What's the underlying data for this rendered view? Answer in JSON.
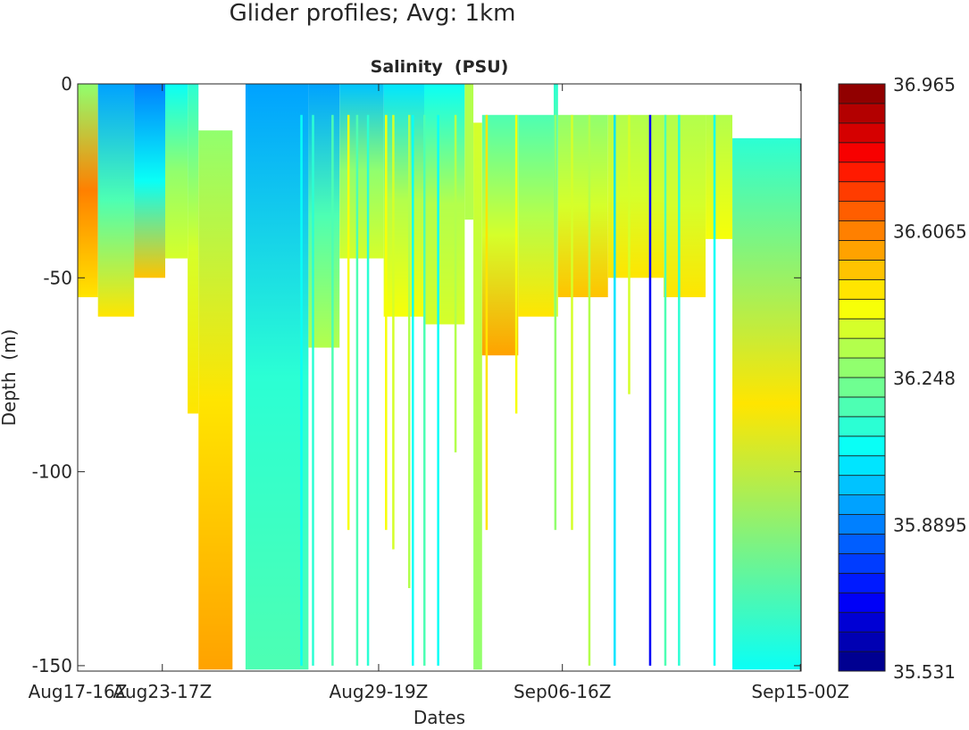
{
  "chart_data": {
    "type": "heatmap",
    "suptitle": "Glider profiles; Avg: 1km",
    "title": "Salinity  (PSU)",
    "xlabel": "Dates",
    "ylabel": "Depth  (m)",
    "xlim": [
      0,
      100
    ],
    "ylim": [
      -151.4,
      0
    ],
    "xticks": [
      {
        "value": 0,
        "label": "Aug17-16Z"
      },
      {
        "value": 11.7,
        "label": "Aug23-17Z"
      },
      {
        "value": 41.6,
        "label": "Aug29-19Z"
      },
      {
        "value": 67.0,
        "label": "Sep06-16Z"
      },
      {
        "value": 99.9,
        "label": "Sep15-00Z"
      }
    ],
    "yticks": [
      {
        "value": 0,
        "label": "0"
      },
      {
        "value": -50,
        "label": "-50"
      },
      {
        "value": -100,
        "label": "-100"
      },
      {
        "value": -150,
        "label": "-150"
      }
    ],
    "colorbar": {
      "min": 35.531,
      "max": 36.965,
      "levels": 30,
      "colormap": "jet",
      "ticks": [
        {
          "value": 36.965,
          "label": "36.965"
        },
        {
          "value": 36.6065,
          "label": "36.6065"
        },
        {
          "value": 36.248,
          "label": "36.248"
        },
        {
          "value": 35.8895,
          "label": "35.8895"
        },
        {
          "value": 35.531,
          "label": "35.531"
        }
      ]
    },
    "segments": [
      {
        "x0": 0,
        "x1": 2.8,
        "top": 0,
        "bottom": -55,
        "s": [
          36.25,
          36.6,
          36.45
        ]
      },
      {
        "x0": 2.8,
        "x1": 7.8,
        "top": 0,
        "bottom": -60,
        "s": [
          35.95,
          36.2,
          36.45
        ]
      },
      {
        "x0": 7.8,
        "x1": 12.1,
        "top": 0,
        "bottom": -50,
        "s": [
          35.9,
          36.1,
          36.5
        ]
      },
      {
        "x0": 12.1,
        "x1": 15.2,
        "top": 0,
        "bottom": -45,
        "s": [
          36.1,
          36.25,
          36.35
        ]
      },
      {
        "x0": 15.2,
        "x1": 16.7,
        "top": 0,
        "bottom": -85,
        "s": [
          36.15,
          36.35,
          36.45
        ]
      },
      {
        "x0": 16.7,
        "x1": 21.4,
        "top": -12,
        "bottom": -151,
        "s": [
          36.25,
          36.45,
          36.55
        ]
      },
      {
        "x0": 23.2,
        "x1": 31.9,
        "top": 0,
        "bottom": -151,
        "s": [
          35.95,
          36.15,
          36.2
        ]
      },
      {
        "x0": 31.9,
        "x1": 36.2,
        "top": 0,
        "bottom": -68,
        "s": [
          35.95,
          36.2,
          36.3
        ]
      },
      {
        "x0": 36.2,
        "x1": 42.3,
        "top": 0,
        "bottom": -45,
        "s": [
          36.0,
          36.25,
          36.35
        ]
      },
      {
        "x0": 42.3,
        "x1": 47.9,
        "top": 0,
        "bottom": -60,
        "s": [
          36.05,
          36.3,
          36.4
        ]
      },
      {
        "x0": 47.9,
        "x1": 53.5,
        "top": 0,
        "bottom": -62,
        "s": [
          36.1,
          36.3,
          36.35
        ]
      },
      {
        "x0": 53.5,
        "x1": 54.7,
        "top": 0,
        "bottom": -35,
        "s": [
          36.3,
          36.3,
          36.3
        ]
      },
      {
        "x0": 54.7,
        "x1": 55.9,
        "top": -10,
        "bottom": -151,
        "s": [
          36.35,
          36.3,
          36.25
        ]
      },
      {
        "x0": 55.9,
        "x1": 60.9,
        "top": -8,
        "bottom": -70,
        "s": [
          36.2,
          36.35,
          36.55
        ]
      },
      {
        "x0": 60.9,
        "x1": 65.8,
        "top": -8,
        "bottom": -60,
        "s": [
          36.2,
          36.3,
          36.45
        ]
      },
      {
        "x0": 65.8,
        "x1": 66.4,
        "top": 0,
        "bottom": -60,
        "s": [
          36.15,
          36.25,
          36.35
        ]
      },
      {
        "x0": 66.4,
        "x1": 73.3,
        "top": -8,
        "bottom": -55,
        "s": [
          36.25,
          36.35,
          36.5
        ]
      },
      {
        "x0": 73.3,
        "x1": 81.0,
        "top": -8,
        "bottom": -50,
        "s": [
          36.3,
          36.35,
          36.45
        ]
      },
      {
        "x0": 81.0,
        "x1": 86.8,
        "top": -8,
        "bottom": -55,
        "s": [
          36.3,
          36.35,
          36.45
        ]
      },
      {
        "x0": 86.8,
        "x1": 90.5,
        "top": -8,
        "bottom": -40,
        "s": [
          36.3,
          36.35,
          36.4
        ]
      },
      {
        "x0": 90.5,
        "x1": 100,
        "top": -14,
        "bottom": -151,
        "s": [
          36.15,
          36.45,
          36.1
        ]
      }
    ],
    "strands": [
      {
        "x": 30.9,
        "bottom": -150,
        "s": 36.1
      },
      {
        "x": 32.5,
        "bottom": -150,
        "s": 36.15
      },
      {
        "x": 35.2,
        "bottom": -150,
        "s": 36.2
      },
      {
        "x": 37.4,
        "bottom": -115,
        "s": 36.4
      },
      {
        "x": 38.6,
        "bottom": -150,
        "s": 36.2
      },
      {
        "x": 40.1,
        "bottom": -150,
        "s": 36.15
      },
      {
        "x": 42.6,
        "bottom": -115,
        "s": 36.4
      },
      {
        "x": 43.6,
        "bottom": -120,
        "s": 36.35
      },
      {
        "x": 45.8,
        "bottom": -130,
        "s": 36.3
      },
      {
        "x": 46.3,
        "bottom": -150,
        "s": 36.1
      },
      {
        "x": 47.9,
        "bottom": -150,
        "s": 36.2
      },
      {
        "x": 49.8,
        "bottom": -150,
        "s": 36.1
      },
      {
        "x": 52.2,
        "bottom": -95,
        "s": 36.3
      },
      {
        "x": 56.5,
        "bottom": -115,
        "s": 36.45
      },
      {
        "x": 60.6,
        "bottom": -85,
        "s": 36.4
      },
      {
        "x": 66.0,
        "bottom": -115,
        "s": 36.25
      },
      {
        "x": 68.3,
        "bottom": -115,
        "s": 36.35
      },
      {
        "x": 70.7,
        "bottom": -150,
        "s": 36.3
      },
      {
        "x": 74.2,
        "bottom": -150,
        "s": 36.05
      },
      {
        "x": 76.2,
        "bottom": -80,
        "s": 36.35
      },
      {
        "x": 79.1,
        "bottom": -150,
        "s": 35.7
      },
      {
        "x": 81.2,
        "bottom": -150,
        "s": 36.2
      },
      {
        "x": 83.1,
        "bottom": -150,
        "s": 36.15
      },
      {
        "x": 88.0,
        "bottom": -150,
        "s": 36.1
      }
    ]
  }
}
